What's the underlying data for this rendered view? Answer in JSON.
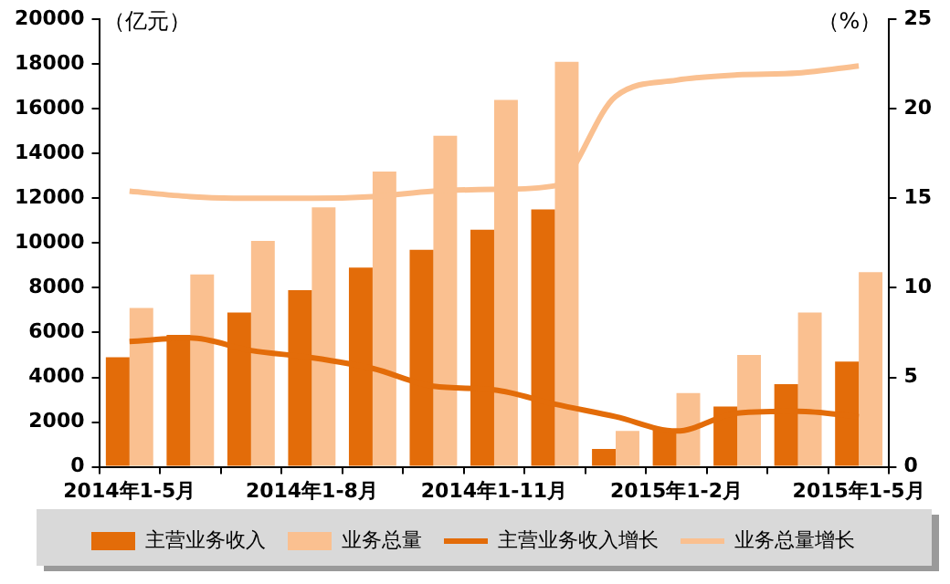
{
  "chart_data": {
    "type": "bar",
    "ylabel": "（亿元）",
    "y2label": "（%）",
    "categories": [
      "2014年1-5月",
      null,
      null,
      "2014年1-8月",
      null,
      null,
      "2014年1-11月",
      null,
      null,
      "2015年1-2月",
      null,
      null,
      "2015年1-5月"
    ],
    "series": [
      {
        "name": "主营业务收入",
        "color": "#e36c09",
        "values": [
          4900,
          5900,
          6900,
          7900,
          8900,
          9700,
          10600,
          11500,
          800,
          1700,
          2700,
          3700,
          4700
        ]
      },
      {
        "name": "业务总量",
        "color": "#fac090",
        "values": [
          7100,
          8600,
          10100,
          11600,
          13200,
          14800,
          16400,
          18100,
          1600,
          3300,
          5000,
          6900,
          8700
        ]
      },
      {
        "name": "主营业务收入增长",
        "type": "line",
        "axis": "y2",
        "color": "#e36c09",
        "values": [
          7.0,
          7.2,
          6.5,
          6.1,
          5.5,
          4.5,
          4.3,
          3.5,
          2.8,
          2.0,
          3.0,
          3.1,
          2.8
        ]
      },
      {
        "name": "业务总量增长",
        "type": "line",
        "axis": "y2",
        "color": "#fac090",
        "values": [
          15.4,
          15.1,
          15.0,
          15.0,
          15.1,
          15.4,
          15.5,
          15.7,
          20.7,
          21.6,
          21.9,
          22.0,
          22.4
        ]
      }
    ],
    "ylim": [
      0,
      20000
    ],
    "yticks": [
      0,
      2000,
      4000,
      6000,
      8000,
      10000,
      12000,
      14000,
      16000,
      18000,
      20000
    ],
    "y2lim": [
      0,
      25
    ],
    "y2ticks": [
      0,
      5,
      10,
      15,
      20,
      25
    ],
    "grid": false,
    "legend": "bottom",
    "marker": "none"
  }
}
